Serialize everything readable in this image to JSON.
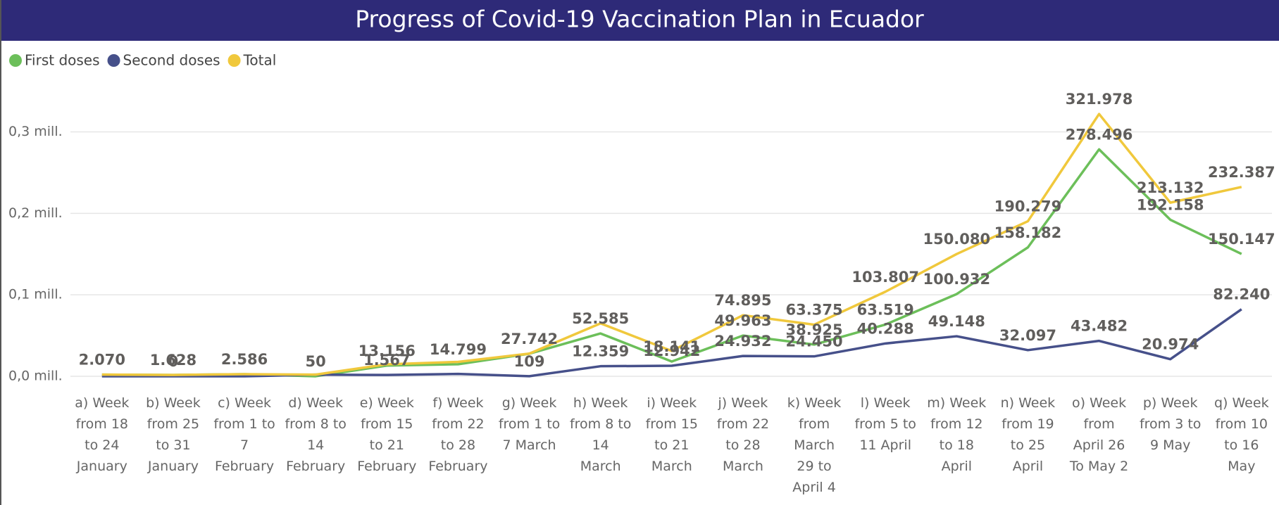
{
  "chart_data": {
    "type": "line",
    "title": "Progress of Covid-19 Vaccination Plan in Ecuador",
    "categories": [
      "a) Week from 18 to 24 January",
      "b) Week from 25 to 31 January",
      "c) Week from 1 to 7 February",
      "d) Week from 8 to 14 February",
      "e) Week from 15 to 21 February",
      "f) Week from 22 to 28 February",
      "g) Week from 1 to 7 March",
      "h) Week from 8 to 14 March",
      "i) Week from 15 to 21 March",
      "j) Week from 22 to 28 March",
      "k) Week from March 29 to April 4",
      "l) Week from 5 to 11 April",
      "m) Week from 12 to 18 April",
      "n) Week from 19 to 25 April",
      "o) Week from April 26 To May 2",
      "p) Week from 3 to 9 May",
      "q) Week from 10 to 16 May"
    ],
    "series": [
      {
        "name": "First doses",
        "color": "#6cbf5a",
        "values": [
          2070,
          1628,
          2586,
          50,
          13156,
          14799,
          27742,
          52585,
          18141,
          49963,
          38925,
          63519,
          100932,
          158182,
          278496,
          192158,
          150147
        ],
        "value_labels": [
          null,
          null,
          null,
          "50",
          "13.156",
          "14.799",
          "27.742",
          "52.585",
          "18.141",
          "49.963",
          "38.925",
          "63.519",
          "100.932",
          "158.182",
          "278.496",
          "192.158",
          "150.147"
        ]
      },
      {
        "name": "Second doses",
        "color": "#46508a",
        "values": [
          0,
          0,
          0,
          2000,
          1567,
          2900,
          109,
          12359,
          12942,
          24932,
          24450,
          40288,
          49148,
          32097,
          43482,
          20974,
          82240
        ],
        "value_labels": [
          null,
          "0",
          null,
          null,
          "1.567",
          null,
          "109",
          "12.359",
          "12.942",
          "24.932",
          "24.450",
          "40.288",
          "49.148",
          "32.097",
          "43.482",
          "20.974",
          "82.240"
        ]
      },
      {
        "name": "Total",
        "color": "#f0c83c",
        "values": [
          2070,
          1628,
          2586,
          2050,
          14723,
          17699,
          27851,
          64944,
          31083,
          74895,
          63375,
          103807,
          150080,
          190279,
          321978,
          213132,
          232387
        ],
        "value_labels": [
          "2.070",
          "1.628",
          "2.586",
          null,
          null,
          null,
          null,
          null,
          null,
          "74.895",
          "63.375",
          "103.807",
          "150.080",
          "190.279",
          "321.978",
          "213.132",
          "232.387"
        ]
      }
    ],
    "ylim": [
      0,
      360000
    ],
    "yticks": [
      {
        "value": 0,
        "label": "0,0 mill."
      },
      {
        "value": 100000,
        "label": "0,1 mill."
      },
      {
        "value": 200000,
        "label": "0,2 mill."
      },
      {
        "value": 300000,
        "label": "0,3 mill."
      }
    ],
    "grid": true
  }
}
